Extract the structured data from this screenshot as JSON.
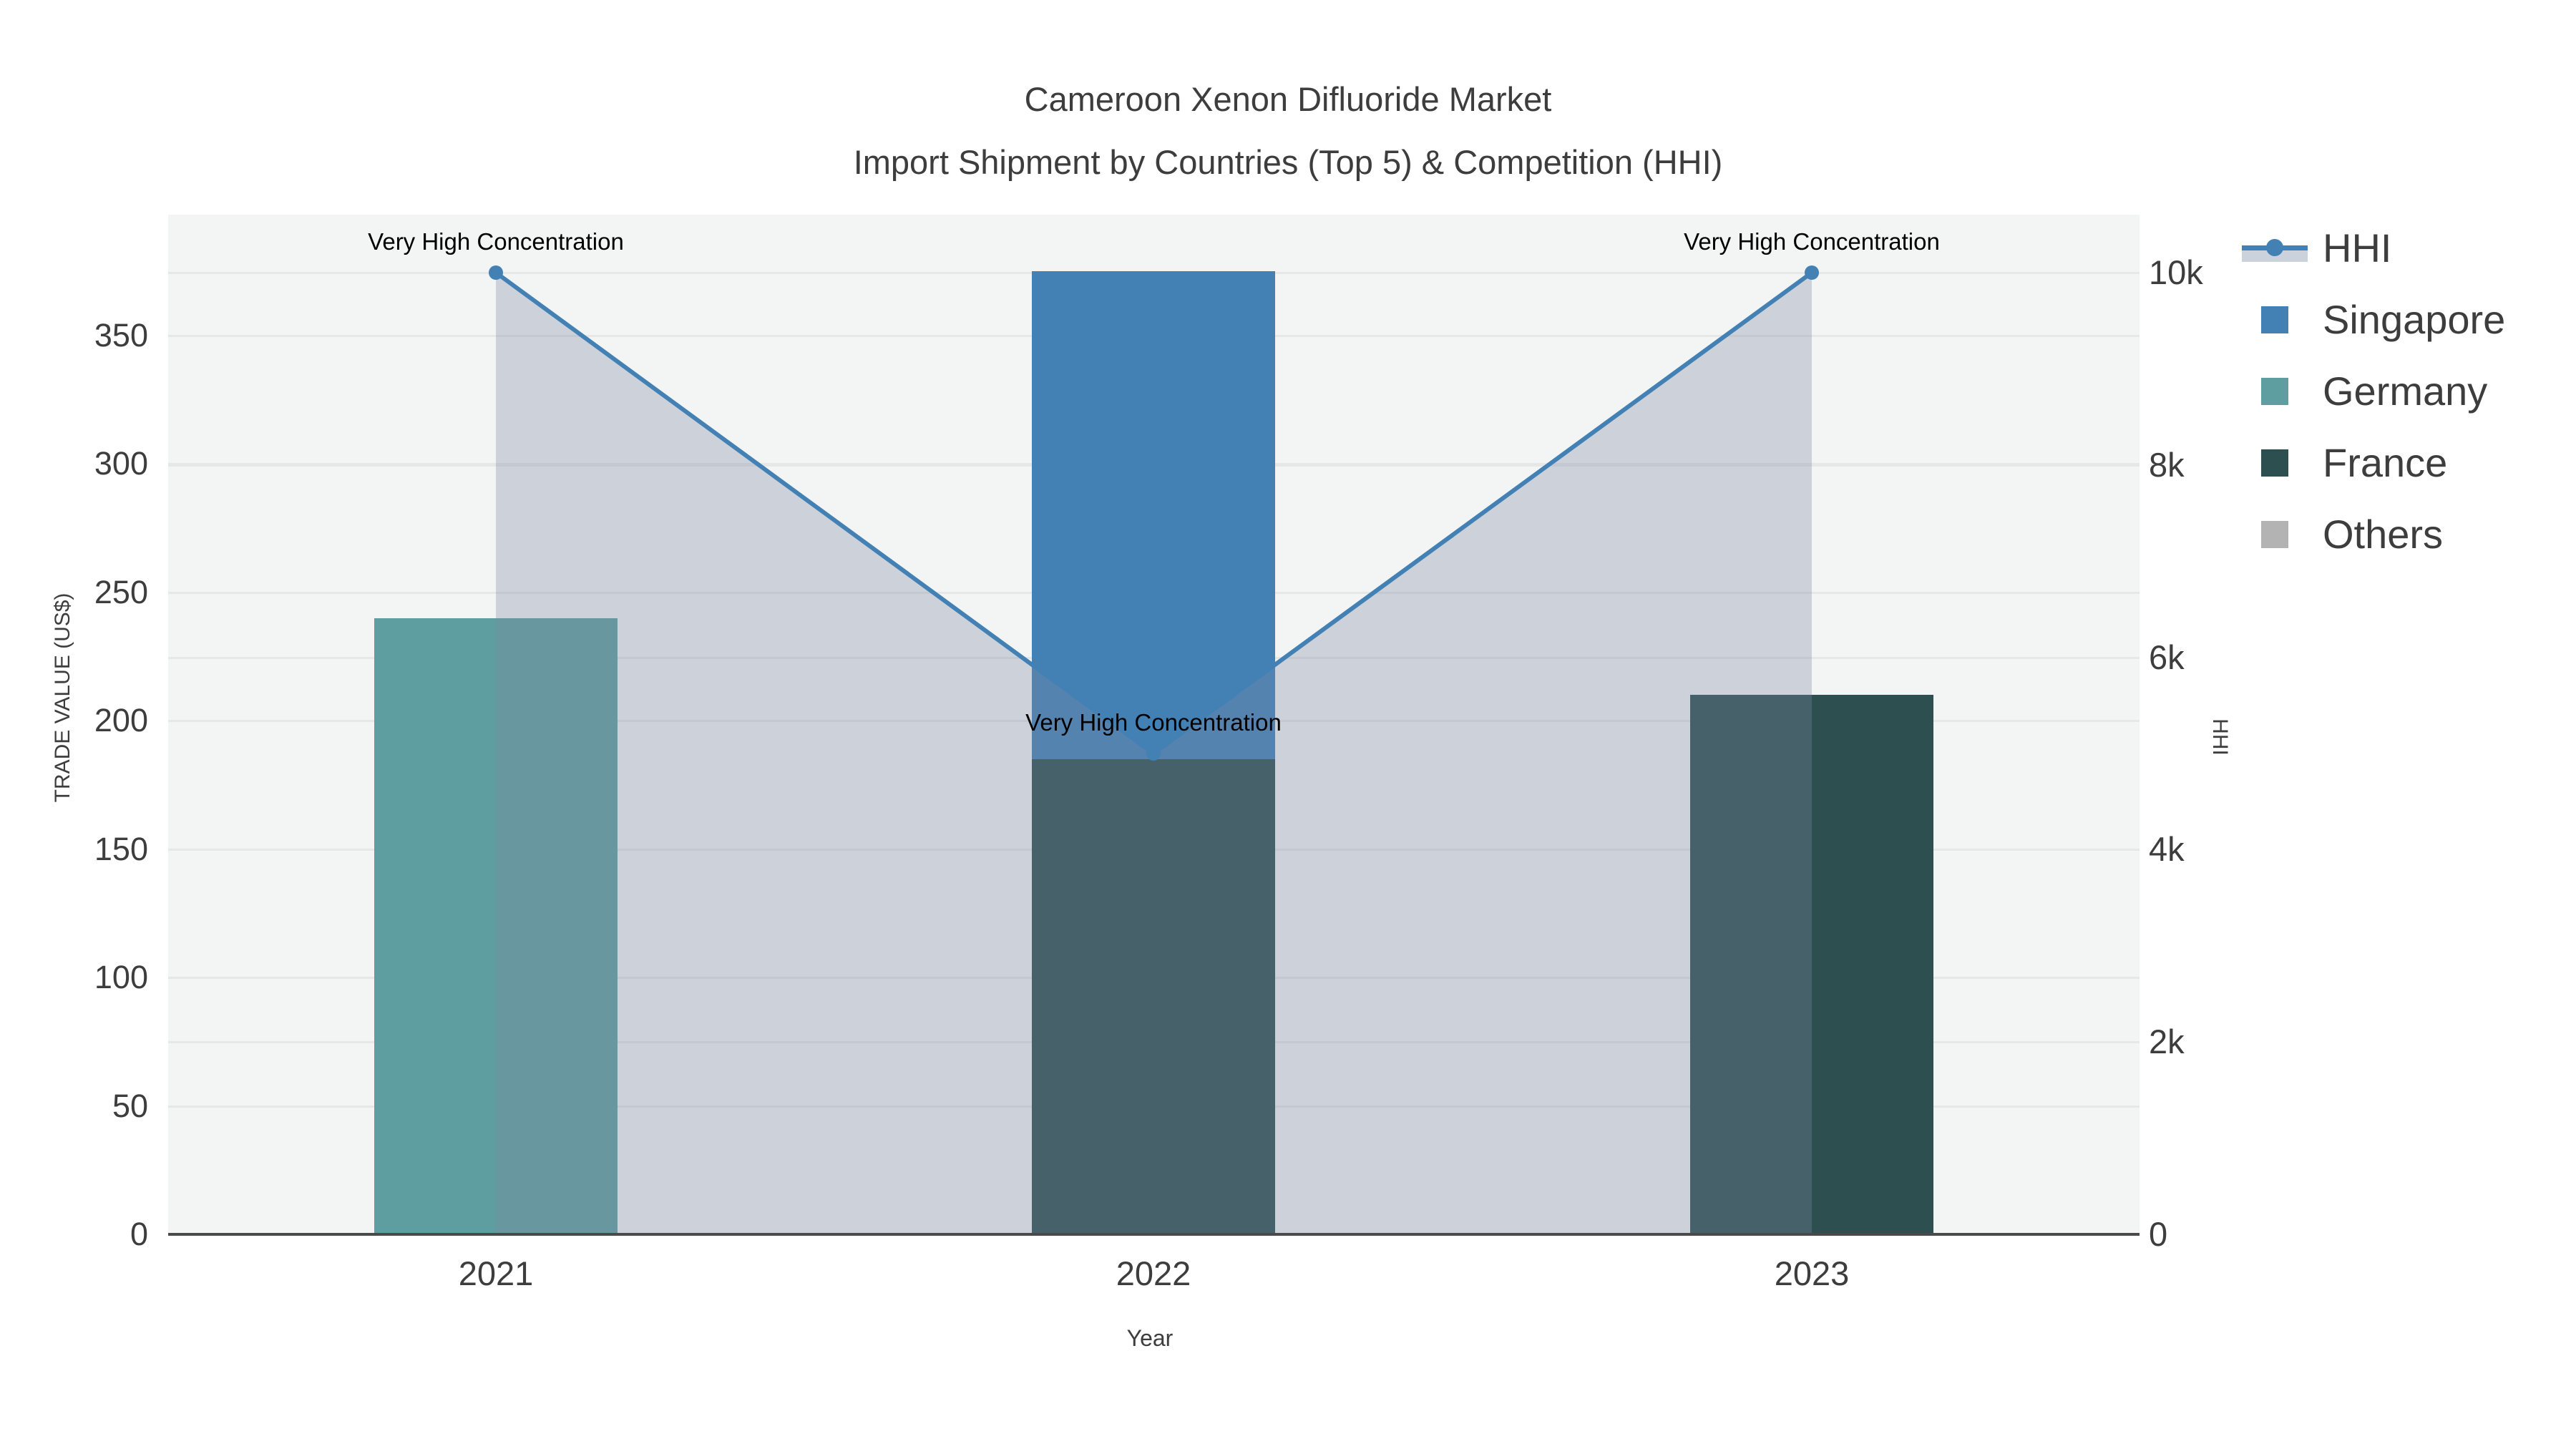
{
  "chart_data": {
    "type": "composite-bar-line",
    "title": "Cameroon Xenon Difluoride Market",
    "subtitle": "Import Shipment by Countries (Top 5) & Competition (HHI)",
    "categories": [
      "2021",
      "2022",
      "2023"
    ],
    "bar_series": [
      {
        "name": "Singapore",
        "color": "#4381b5",
        "values": [
          0,
          190,
          0
        ]
      },
      {
        "name": "Germany",
        "color": "#5f9ea0",
        "values": [
          240,
          0,
          0
        ]
      },
      {
        "name": "France",
        "color": "#2d4f4f",
        "values": [
          0,
          185,
          210
        ]
      },
      {
        "name": "Others",
        "color": "#b3b3b3",
        "values": [
          0,
          0,
          0
        ]
      }
    ],
    "stack_order": [
      "Germany",
      "France",
      "Singapore",
      "Others"
    ],
    "line_series": {
      "name": "HHI",
      "axis": "right",
      "color": "#4381b5",
      "fill_color": "rgba(124,137,162,0.32)",
      "values": [
        10000,
        5000,
        10000
      ]
    },
    "annotations": [
      {
        "text": "Very High Concentration",
        "category": "2021",
        "value": 10000
      },
      {
        "text": "Very High Concentration",
        "category": "2022",
        "value": 5000
      },
      {
        "text": "Very High Concentration",
        "category": "2023",
        "value": 10000
      }
    ],
    "x_axis": {
      "title": "Year",
      "tick_labels": [
        "2021",
        "2022",
        "2023"
      ]
    },
    "y_left": {
      "title": "TRADE VALUE (US$)",
      "tick_values": [
        0,
        50,
        100,
        150,
        200,
        250,
        300,
        350
      ],
      "tick_labels": [
        "0",
        "50",
        "100",
        "150",
        "200",
        "250",
        "300",
        "350"
      ],
      "range": [
        0,
        397
      ]
    },
    "y_right": {
      "title": "HHI",
      "tick_values": [
        0,
        2000,
        4000,
        6000,
        8000,
        10000
      ],
      "tick_labels": [
        "0",
        "2k",
        "4k",
        "6k",
        "8k",
        "10k"
      ],
      "range": [
        0,
        10600
      ]
    },
    "legend": {
      "entries": [
        {
          "name": "HHI",
          "type": "line",
          "color": "#4381b5"
        },
        {
          "name": "Singapore",
          "type": "square",
          "color": "#4381b5"
        },
        {
          "name": "Germany",
          "type": "square",
          "color": "#5f9ea0"
        },
        {
          "name": "France",
          "type": "square",
          "color": "#2d4f4f"
        },
        {
          "name": "Others",
          "type": "square",
          "color": "#b3b3b3"
        }
      ],
      "position": "right"
    },
    "grid": true,
    "plot_bg": "#f3f4f4",
    "grid_color": "#e6e8e8",
    "text_color": "#3d3d3d"
  }
}
